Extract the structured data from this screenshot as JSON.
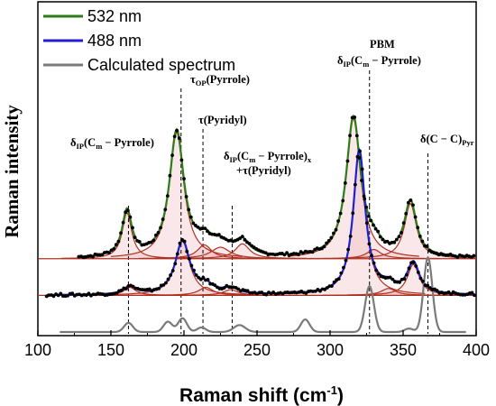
{
  "chart_data": {
    "type": "line",
    "xlabel": "Raman shift (cm⁻¹)",
    "ylabel": "Raman intensity",
    "xlim": [
      100,
      400
    ],
    "x_ticks": [
      "100",
      "150",
      "200",
      "250",
      "300",
      "350",
      "400"
    ],
    "y_ticks_shown": false,
    "legend_placement": "top-left",
    "series": [
      {
        "name": "532 nm",
        "color": "#2e7d1a",
        "offset": 0.64,
        "baseline": 0.0,
        "peaks": [
          {
            "x": 161,
            "h": 0.4,
            "w": 4
          },
          {
            "x": 195,
            "h": 1.1,
            "w": 6
          },
          {
            "x": 214,
            "h": 0.12,
            "w": 6
          },
          {
            "x": 225,
            "h": 0.1,
            "w": 8
          },
          {
            "x": 240,
            "h": 0.13,
            "w": 6
          },
          {
            "x": 316,
            "h": 1.22,
            "w": 6
          },
          {
            "x": 330,
            "h": 0.08,
            "w": 6
          },
          {
            "x": 355,
            "h": 0.48,
            "w": 5
          }
        ]
      },
      {
        "name": "488 nm",
        "color": "#2020d0",
        "offset": 0.32,
        "baseline": 0.0,
        "peaks": [
          {
            "x": 163,
            "h": 0.07,
            "w": 5
          },
          {
            "x": 199,
            "h": 0.47,
            "w": 6
          },
          {
            "x": 215,
            "h": 0.07,
            "w": 6
          },
          {
            "x": 232,
            "h": 0.05,
            "w": 6
          },
          {
            "x": 320,
            "h": 1.26,
            "w": 5
          },
          {
            "x": 340,
            "h": 0.06,
            "w": 6
          },
          {
            "x": 357,
            "h": 0.27,
            "w": 5
          }
        ]
      },
      {
        "name": "Calculated spectrum",
        "color": "#7a7a7a",
        "offset": 0.0,
        "baseline": 0.0,
        "peaks": [
          {
            "x": 162,
            "h": 0.08,
            "w": 3
          },
          {
            "x": 189,
            "h": 0.09,
            "w": 3
          },
          {
            "x": 199,
            "h": 0.12,
            "w": 3
          },
          {
            "x": 212,
            "h": 0.04,
            "w": 3
          },
          {
            "x": 238,
            "h": 0.06,
            "w": 4
          },
          {
            "x": 283,
            "h": 0.11,
            "w": 3
          },
          {
            "x": 327,
            "h": 0.4,
            "w": 3
          },
          {
            "x": 354,
            "h": 0.03,
            "w": 3
          },
          {
            "x": 367,
            "h": 0.65,
            "w": 3
          }
        ]
      }
    ],
    "fit_components_color": "#b03020",
    "reference_lines_x": [
      162,
      198,
      213,
      233,
      327,
      367
    ],
    "annotations": [
      {
        "text": "δIP(Cm − Pyrrole)",
        "x": 162
      },
      {
        "text": "τOP(Pyrrole)",
        "x": 198
      },
      {
        "text": "τ(Pyridyl)",
        "x": 213
      },
      {
        "text": "δIP(Cm − Pyrrole)x",
        "x": 233
      },
      {
        "text": "+τ(Pyridyl)",
        "x": 233
      },
      {
        "text": "PBM",
        "x": 327
      },
      {
        "text": "δIP(Cm − Pyrrole)",
        "x": 327
      },
      {
        "text": "δ(C − C)Pyr",
        "x": 367
      }
    ]
  },
  "axes": {
    "xlabel": "Raman shift (cm⁻¹)",
    "ylabel": "Raman intensity"
  },
  "legend": {
    "items": [
      "532 nm",
      "488 nm",
      "Calculated spectrum"
    ]
  }
}
